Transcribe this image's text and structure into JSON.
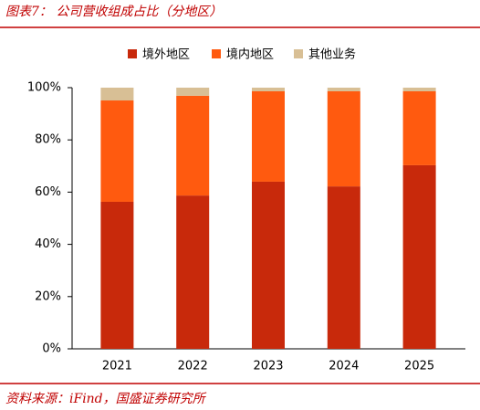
{
  "chart_data": {
    "type": "stacked_bar",
    "title": "图表7：  公司营收组成占比（分地区）",
    "source": "资料来源：iFind，国盛证券研究所",
    "categories": [
      "2021",
      "2022",
      "2023",
      "2024",
      "2025"
    ],
    "series": [
      {
        "name": "境外地区",
        "color": "#c8290b",
        "values": [
          56.3,
          58.7,
          64,
          62.2,
          70.3
        ]
      },
      {
        "name": "境内地区",
        "color": "#ff5a0f",
        "values": [
          38.8,
          38.2,
          34.6,
          36.4,
          28.3
        ]
      },
      {
        "name": "其他业务",
        "color": "#d8bf95",
        "values": [
          4.9,
          3.1,
          1.4,
          1.4,
          1.4
        ]
      }
    ],
    "ylim": [
      0,
      100
    ],
    "yticks": [
      {
        "value": 0,
        "label": "0%"
      },
      {
        "value": 20,
        "label": "20%"
      },
      {
        "value": 40,
        "label": "40%"
      },
      {
        "value": 60,
        "label": "60%"
      },
      {
        "value": 80,
        "label": "80%"
      },
      {
        "value": 100,
        "label": "100%"
      }
    ]
  }
}
